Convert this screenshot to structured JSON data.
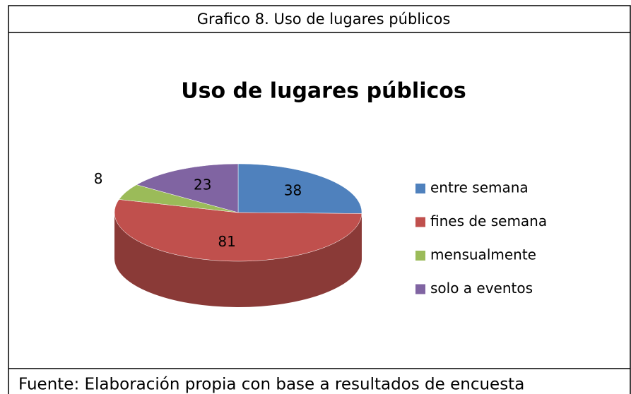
{
  "caption": "Grafico 8. Uso de lugares públicos",
  "source": "Fuente: Elaboración propia con base a resultados de encuesta",
  "chart_data": {
    "type": "pie",
    "title": "Uso de lugares públicos",
    "categories": [
      "entre semana",
      "fines de semana",
      "mensualmente",
      "solo a eventos"
    ],
    "values": [
      38,
      81,
      8,
      23
    ],
    "colors": [
      "#4f81bd",
      "#c0504d",
      "#9bbb59",
      "#8064a2"
    ],
    "legend": "right"
  }
}
